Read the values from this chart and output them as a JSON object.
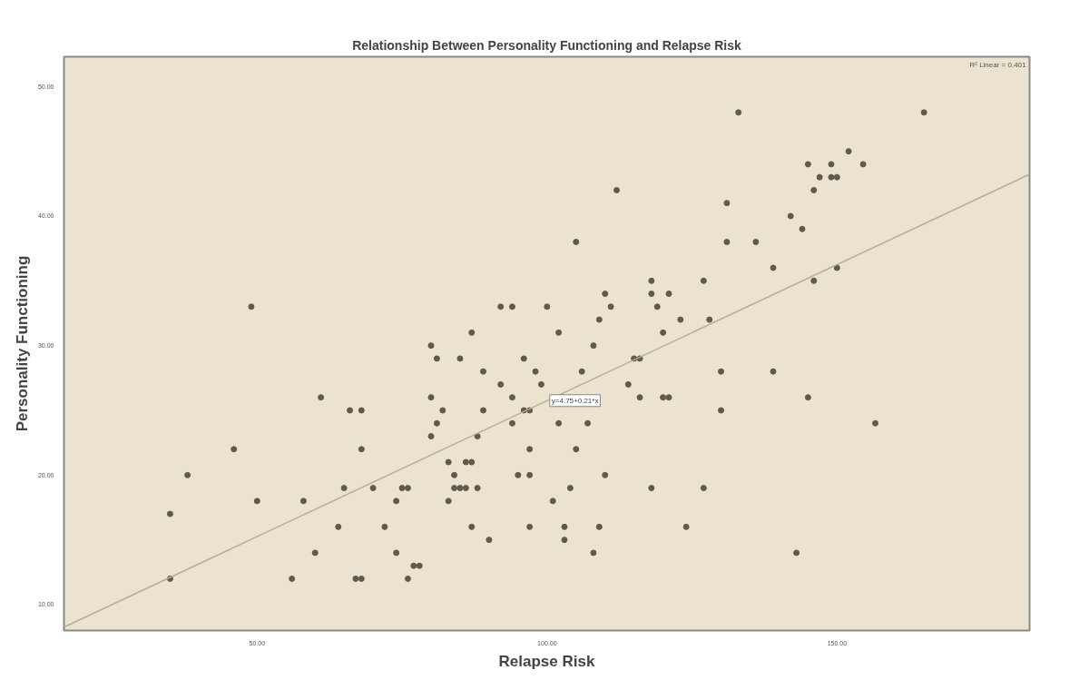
{
  "chart_data": {
    "type": "scatter",
    "title": "Relationship Between Personality Functioning and Relapse Risk",
    "xlabel": "Relapse Risk",
    "ylabel": "Personality Functioning",
    "xlim": [
      16.7,
      183.2
    ],
    "ylim": [
      8,
      52.3
    ],
    "xticks": [
      {
        "value": 50,
        "label": "50.00"
      },
      {
        "value": 100,
        "label": "100.00"
      },
      {
        "value": 150,
        "label": "150.00"
      }
    ],
    "yticks": [
      {
        "value": 10,
        "label": "10.00"
      },
      {
        "value": 20,
        "label": "20.00"
      },
      {
        "value": 30,
        "label": "30.00"
      },
      {
        "value": 40,
        "label": "40.00"
      },
      {
        "value": 50,
        "label": "50.00"
      }
    ],
    "grid": false,
    "marker": "circle",
    "series": [
      {
        "type": "scatter",
        "color": "#5e5a4c",
        "x": [
          35,
          35,
          38,
          46,
          49,
          50,
          58,
          56,
          60,
          64,
          65,
          61,
          66,
          67,
          68,
          68,
          68,
          70,
          72,
          74,
          75,
          76,
          74,
          76,
          77,
          78,
          80,
          80,
          81,
          80,
          81,
          82,
          83,
          83,
          84,
          84,
          85,
          86,
          85,
          86,
          87,
          87,
          87,
          88,
          88,
          89,
          89,
          90,
          92,
          92,
          94,
          94,
          94,
          95,
          96,
          96,
          97,
          98,
          97,
          97,
          97,
          99,
          100,
          101,
          102,
          102,
          103,
          103,
          104,
          105,
          105,
          106,
          107,
          108,
          108,
          109,
          109,
          110,
          110,
          111,
          112,
          114,
          115,
          116,
          116,
          118,
          118,
          118,
          119,
          120,
          120,
          121,
          121,
          123,
          124,
          127,
          127,
          128,
          130,
          130,
          131,
          131,
          133,
          136,
          139,
          139,
          142,
          144,
          145,
          145,
          143,
          146,
          146,
          147,
          149,
          149,
          150,
          150,
          152,
          154.5,
          156.6,
          165
        ],
        "values": [
          17,
          12,
          20,
          22,
          33,
          18,
          18,
          12,
          14,
          16,
          19,
          26,
          25,
          12,
          12,
          25,
          22,
          19,
          16,
          18,
          19,
          19,
          14,
          12,
          13,
          13,
          26,
          30,
          29,
          23,
          24,
          25,
          21,
          18,
          20,
          19,
          19,
          19,
          29,
          21,
          21,
          31,
          16,
          23,
          19,
          28,
          25,
          15,
          27,
          33,
          33,
          26,
          24,
          20,
          29,
          25,
          25,
          28,
          22,
          20,
          16,
          27,
          33,
          18,
          31,
          24,
          16,
          15,
          19,
          22,
          38,
          28,
          24,
          30,
          14,
          32,
          16,
          34,
          20,
          33,
          42,
          27,
          29,
          29,
          26,
          35,
          34,
          19,
          33,
          31,
          26,
          26,
          34,
          32,
          16,
          35,
          19,
          32,
          28,
          25,
          38,
          41,
          48,
          38,
          36,
          28,
          40,
          39,
          44,
          26,
          14,
          42,
          35,
          43,
          44,
          43,
          43,
          36,
          45,
          44,
          24,
          48
        ]
      },
      {
        "type": "line",
        "color": "#b8ad8f",
        "marker": "none",
        "x": [
          16.7,
          183.2
        ],
        "values": [
          8.26,
          43.22
        ]
      }
    ],
    "annotations": [
      {
        "text": "y=4.75+0.21*x",
        "x": 100,
        "y": 25.75
      },
      "R² Linear = 0.401"
    ]
  }
}
